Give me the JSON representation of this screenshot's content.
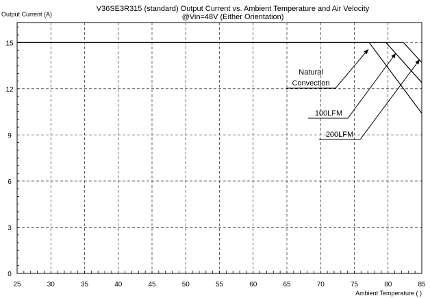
{
  "chart_data": {
    "type": "line",
    "title_line1": "V36SE3R315 (standard)  Output Current vs. Ambient Temperature and Air Velocity",
    "title_line2": "@Vin=48V (Either Orientation)",
    "ylabel": "Output Current (A)",
    "xlabel": "Ambient Temperature (   )",
    "xlim": [
      25,
      85
    ],
    "ylim": [
      0,
      16.3
    ],
    "x_ticks": [
      25,
      30,
      35,
      40,
      45,
      50,
      55,
      60,
      65,
      70,
      75,
      80,
      85
    ],
    "y_ticks": [
      0,
      3,
      6,
      9,
      12,
      15
    ],
    "x_tick_labels": [
      "25",
      "30",
      "35",
      "40",
      "45",
      "50",
      "55",
      "60",
      "65",
      "70",
      "75",
      "80",
      "85"
    ],
    "y_tick_labels": [
      "0",
      "3",
      "6",
      "9",
      "12",
      "15"
    ],
    "grid": true,
    "series": [
      {
        "name": "Natural Convection",
        "x": [
          25,
          77.2,
          85
        ],
        "y": [
          15,
          15,
          10.4
        ]
      },
      {
        "name": "100LFM",
        "x": [
          25,
          79.7,
          85
        ],
        "y": [
          15,
          15,
          12.4
        ]
      },
      {
        "name": "200LFM",
        "x": [
          25,
          82.3,
          85
        ],
        "y": [
          15,
          15,
          13.7
        ]
      }
    ],
    "annotations": [
      {
        "lines": [
          "Natural",
          "Convection"
        ],
        "series": "Natural Convection"
      },
      {
        "lines": [
          "100LFM"
        ],
        "series": "100LFM"
      },
      {
        "lines": [
          "200LFM"
        ],
        "series": "200LFM"
      }
    ]
  }
}
